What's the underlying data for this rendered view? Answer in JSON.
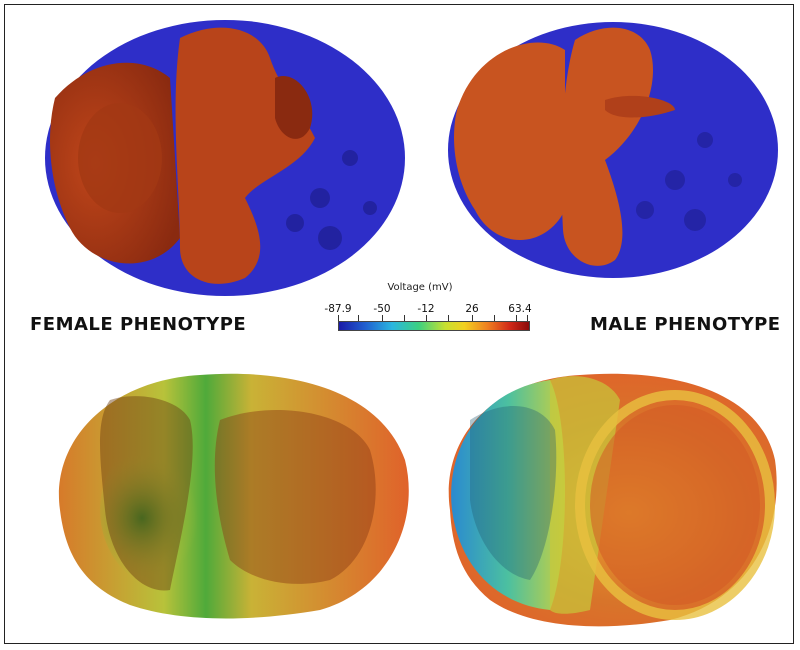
{
  "labels": {
    "female": "FEMALE PHENOTYPE",
    "male": "MALE PHENOTYPE"
  },
  "colorbar": {
    "title": "Voltage (mV)",
    "ticks": [
      "-87.9",
      "-50",
      "-12",
      "26",
      "63.4"
    ],
    "colors": [
      "#1a1aa8",
      "#2ab6e0",
      "#3cd080",
      "#f2d020",
      "#d02818",
      "#8a0a0a"
    ]
  },
  "panels": [
    {
      "id": "female-top",
      "description_colors": [
        "#2b2bc8",
        "#b03a12"
      ]
    },
    {
      "id": "male-top",
      "description_colors": [
        "#2b2bc8",
        "#c85420"
      ]
    },
    {
      "id": "female-bottom",
      "description_colors": [
        "#e06a22",
        "#3aa33a"
      ]
    },
    {
      "id": "male-bottom",
      "description_colors": [
        "#e06a22",
        "#2a8ad0"
      ]
    }
  ]
}
